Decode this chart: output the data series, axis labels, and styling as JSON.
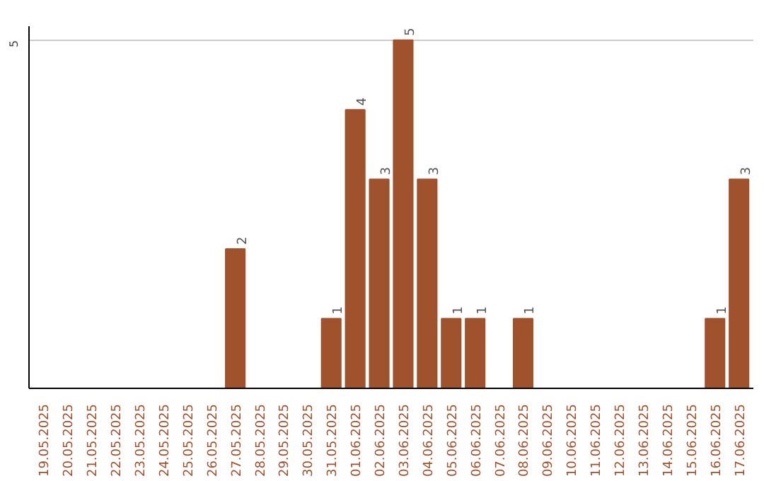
{
  "chart_data": {
    "type": "bar",
    "categories": [
      "19.05.2025",
      "20.05.2025",
      "21.05.2025",
      "22.05.2025",
      "23.05.2025",
      "24.05.2025",
      "25.05.2025",
      "26.05.2025",
      "27.05.2025",
      "28.05.2025",
      "29.05.2025",
      "30.05.2025",
      "31.05.2025",
      "01.06.2025",
      "02.06.2025",
      "03.06.2025",
      "04.06.2025",
      "05.06.2025",
      "06.06.2025",
      "07.06.2025",
      "08.06.2025",
      "09.06.2025",
      "10.06.2025",
      "11.06.2025",
      "12.06.2025",
      "13.06.2025",
      "14.06.2025",
      "15.06.2025",
      "16.06.2025",
      "17.06.2025"
    ],
    "values": [
      0,
      0,
      0,
      0,
      0,
      0,
      0,
      0,
      2,
      0,
      0,
      0,
      1,
      4,
      3,
      5,
      3,
      1,
      1,
      0,
      1,
      0,
      0,
      0,
      0,
      0,
      0,
      0,
      1,
      3
    ],
    "value_labels": [
      null,
      null,
      null,
      null,
      null,
      null,
      null,
      null,
      "2",
      null,
      null,
      null,
      "1",
      "4",
      "3",
      "5",
      "3",
      "1",
      "1",
      null,
      "1",
      null,
      null,
      null,
      null,
      null,
      null,
      null,
      "1",
      "3"
    ],
    "color": "#a0522d",
    "ylim": [
      0,
      5.2
    ],
    "yticks": [
      {
        "value": 0,
        "label": null
      },
      5
    ],
    "grid": "y"
  }
}
